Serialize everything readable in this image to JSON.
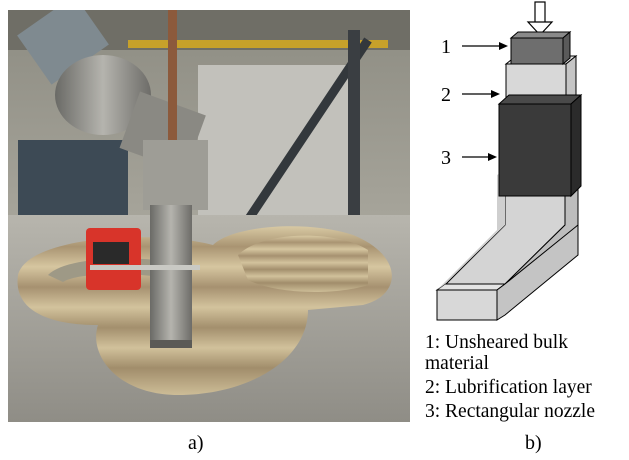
{
  "panel_a": {
    "caption": "a)"
  },
  "panel_b": {
    "caption": "b)",
    "callouts": [
      "1",
      "2",
      "3"
    ],
    "legend": {
      "item1_line1": "1: Unsheared bulk",
      "item1_line2": "material",
      "item2": "2: Lubrification layer",
      "item3": "3: Rectangular nozzle"
    }
  },
  "colors": {
    "bulk": "#6e6e6e",
    "lubrication": "#d8d8d8",
    "nozzle": "#3a3a3a",
    "channel": "#d4d4d4",
    "concrete": "#c9b48c"
  }
}
